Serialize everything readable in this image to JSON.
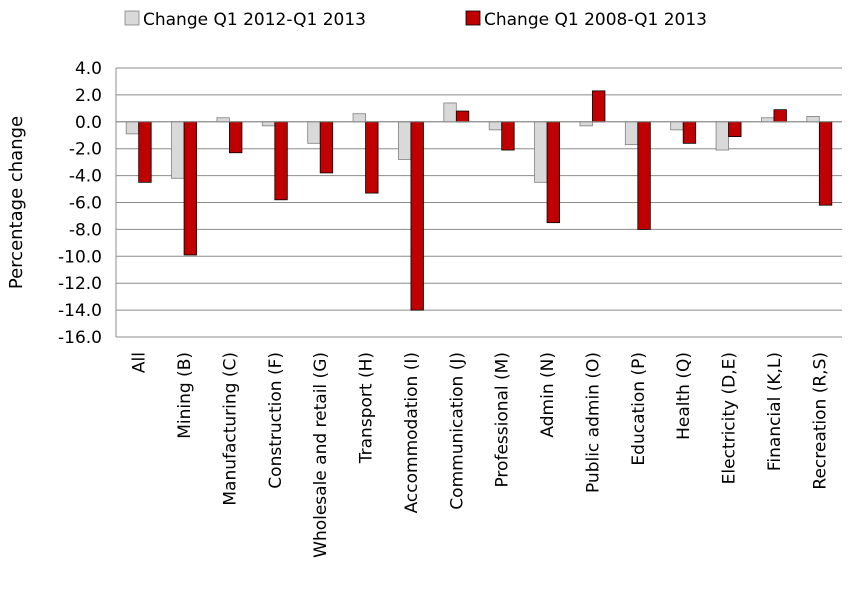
{
  "chart_data": {
    "type": "bar",
    "title": "",
    "xlabel": "",
    "ylabel": "Percentage change",
    "ylim": [
      -16.0,
      4.0
    ],
    "yticks": [
      "4.0",
      "2.0",
      "0.0",
      "-2.0",
      "-4.0",
      "-6.0",
      "-8.0",
      "-10.0",
      "-12.0",
      "-14.0",
      "-16.0"
    ],
    "grid": true,
    "legend": "top",
    "categories": [
      "All",
      "Mining (B)",
      "Manufacturing (C)",
      "Construction (F)",
      "Wholesale and retail (G)",
      "Transport (H)",
      "Accommodation (I)",
      "Communication (J)",
      "Professional (M)",
      "Admin (N)",
      "Public admin (O)",
      "Education (P)",
      "Health (Q)",
      "Electricity (D,E)",
      "Financial (K,L)",
      "Recreation (R,S)"
    ],
    "series": [
      {
        "name": "Change Q1 2012-Q1 2013",
        "color": "#d9d9d9",
        "stroke": "#7f7f7f",
        "values": [
          -0.9,
          -4.2,
          0.3,
          -0.3,
          -1.6,
          0.6,
          -2.8,
          1.4,
          -0.6,
          -4.5,
          -0.3,
          -1.7,
          -0.6,
          -2.1,
          0.3,
          0.4
        ]
      },
      {
        "name": "Change Q1 2008-Q1 2013",
        "color": "#c00000",
        "stroke": "#000000",
        "values": [
          -4.5,
          -9.9,
          -2.3,
          -5.8,
          -3.8,
          -5.3,
          -14.0,
          0.8,
          -2.1,
          -7.5,
          2.3,
          -8.0,
          -1.6,
          -1.1,
          0.9,
          -6.2
        ]
      }
    ]
  }
}
